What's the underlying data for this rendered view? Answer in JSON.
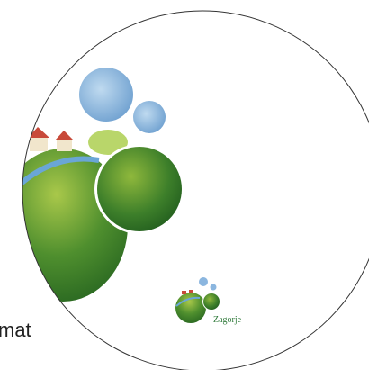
{
  "texts": {
    "side_label": "mat",
    "logo_label": "Zagorje"
  }
}
